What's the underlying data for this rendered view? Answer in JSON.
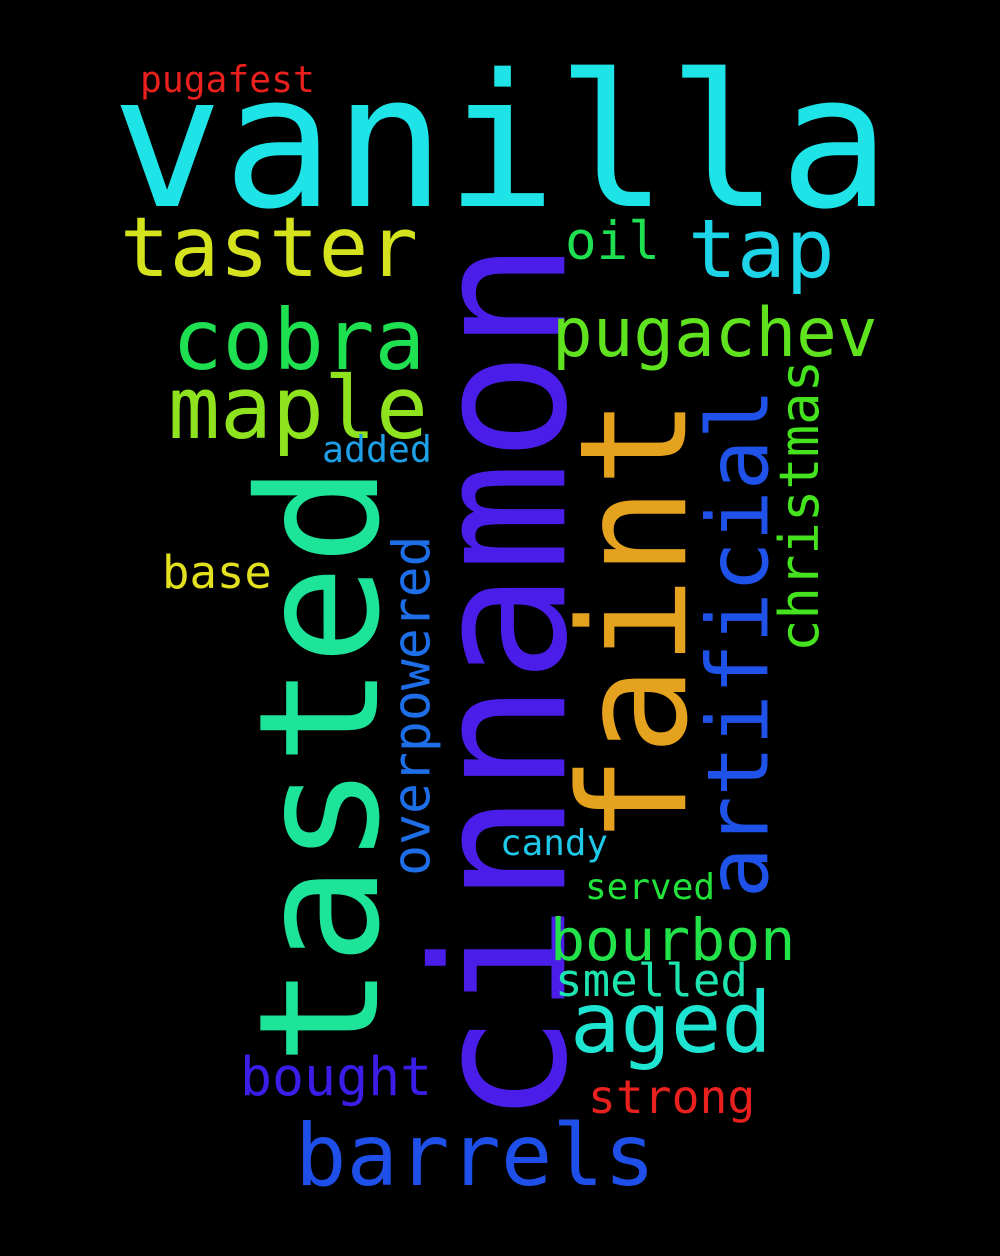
{
  "words": [
    {
      "id": "vanilla",
      "text": "vanilla",
      "color": "#1ee4e8"
    },
    {
      "id": "cinnamon",
      "text": "cinnamon",
      "color": "#4a1ee8"
    },
    {
      "id": "tasted",
      "text": "tasted",
      "color": "#1ee49a"
    },
    {
      "id": "faint",
      "text": "faint",
      "color": "#e5a21e"
    },
    {
      "id": "barrels",
      "text": "barrels",
      "color": "#1e4fe8"
    },
    {
      "id": "taster",
      "text": "taster",
      "color": "#d4e31e"
    },
    {
      "id": "tap",
      "text": "tap",
      "color": "#1ed4e8"
    },
    {
      "id": "cobra",
      "text": "cobra",
      "color": "#1ee050"
    },
    {
      "id": "maple",
      "text": "maple",
      "color": "#8ee31e"
    },
    {
      "id": "pugachev",
      "text": "pugachev",
      "color": "#5ee31e"
    },
    {
      "id": "artificial",
      "text": "artificial",
      "color": "#1e52e8"
    },
    {
      "id": "aged",
      "text": "aged",
      "color": "#1ee4d2"
    },
    {
      "id": "bourbon",
      "text": "bourbon",
      "color": "#22e34a"
    },
    {
      "id": "christmas",
      "text": "christmas",
      "color": "#44e31e"
    },
    {
      "id": "overpowered",
      "text": "overpowered",
      "color": "#1e6ee8"
    },
    {
      "id": "bought",
      "text": "bought",
      "color": "#3a1ee8"
    },
    {
      "id": "smelled",
      "text": "smelled",
      "color": "#1ee4b0"
    },
    {
      "id": "strong",
      "text": "strong",
      "color": "#e8201e"
    },
    {
      "id": "oil",
      "text": "oil",
      "color": "#1ee050"
    },
    {
      "id": "base",
      "text": "base",
      "color": "#e3e01e"
    },
    {
      "id": "candy",
      "text": "candy",
      "color": "#1ec8e8"
    },
    {
      "id": "served",
      "text": "served",
      "color": "#22e33a"
    },
    {
      "id": "added",
      "text": "added",
      "color": "#1ea0e8"
    },
    {
      "id": "pugafest",
      "text": "pugafest",
      "color": "#e8201e"
    }
  ]
}
